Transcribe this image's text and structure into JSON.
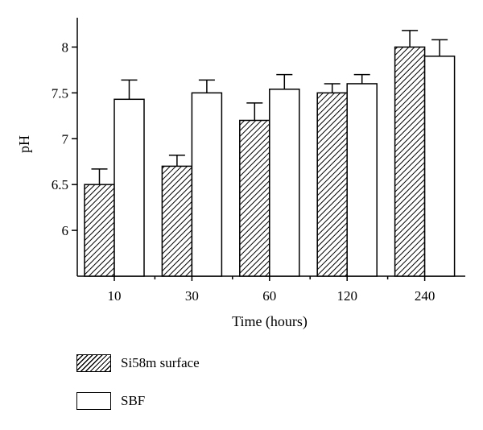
{
  "chart_data": {
    "type": "bar",
    "categories": [
      "10",
      "30",
      "60",
      "120",
      "240"
    ],
    "series": [
      {
        "name": "Si58m surface",
        "values": [
          6.5,
          6.7,
          7.2,
          7.5,
          8.0
        ],
        "errors": [
          0.17,
          0.12,
          0.19,
          0.1,
          0.18
        ],
        "pattern": "hatched"
      },
      {
        "name": "SBF",
        "values": [
          7.43,
          7.5,
          7.54,
          7.6,
          7.9
        ],
        "errors": [
          0.21,
          0.14,
          0.16,
          0.1,
          0.18
        ],
        "pattern": "white"
      }
    ],
    "title": "",
    "xlabel": "Time (hours)",
    "ylabel": "pH",
    "ylim": [
      5.5,
      8.32
    ],
    "yticks": [
      6,
      6.5,
      7,
      7.5,
      8
    ],
    "ytick_labels": [
      "6",
      "6.5",
      "7",
      "7.5",
      "8"
    ],
    "grid": false,
    "legend_position": "bottom-left",
    "colors": {
      "bar_stroke": "#000000",
      "hatch": "#000000",
      "fill": "#ffffff"
    }
  }
}
